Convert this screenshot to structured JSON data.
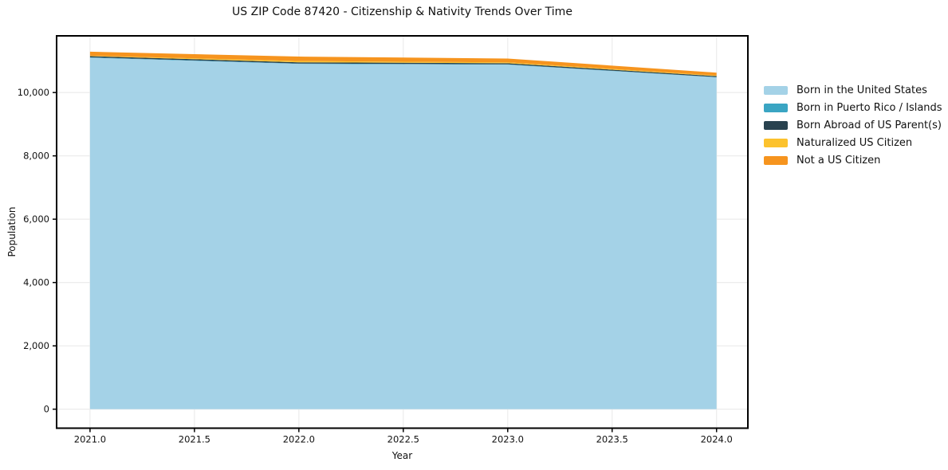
{
  "chart_data": {
    "type": "area",
    "stacked": true,
    "title": "US ZIP Code 87420 - Citizenship & Nativity Trends Over Time",
    "xlabel": "Year",
    "ylabel": "Population",
    "x": [
      2021,
      2022,
      2023,
      2024
    ],
    "series": [
      {
        "name": "Born in the United States",
        "color": "#a4d2e7",
        "values": [
          11100,
          10905,
          10880,
          10480
        ]
      },
      {
        "name": "Born in Puerto Rico / Islands",
        "color": "#3aa5c3",
        "values": [
          12,
          12,
          10,
          8
        ]
      },
      {
        "name": "Born Abroad of US Parent(s)",
        "color": "#29424f",
        "values": [
          38,
          38,
          35,
          30
        ]
      },
      {
        "name": "Naturalized US Citizen",
        "color": "#fcc22d",
        "values": [
          15,
          40,
          28,
          20
        ]
      },
      {
        "name": "Not a US Citizen",
        "color": "#f6941e",
        "values": [
          125,
          140,
          120,
          90
        ]
      }
    ],
    "totals": [
      11290,
      11135,
      11073,
      10628
    ],
    "xlim": [
      2020.84,
      2024.15
    ],
    "ylim": [
      -600,
      11790
    ],
    "xtick_values": [
      2021.0,
      2021.5,
      2022.0,
      2022.5,
      2023.0,
      2023.5,
      2024.0
    ],
    "xtick_labels": [
      "2021.0",
      "2021.5",
      "2022.0",
      "2022.5",
      "2023.0",
      "2023.5",
      "2024.0"
    ],
    "ytick_values": [
      0,
      2000,
      4000,
      6000,
      8000,
      10000
    ],
    "ytick_labels": [
      "0",
      "2,000",
      "4,000",
      "6,000",
      "8,000",
      "10,000"
    ],
    "grid": true,
    "legend_position": "right-outside",
    "colors": {
      "grid": "#ececec",
      "frame": "#000000",
      "background": "#ffffff",
      "text": "#111111"
    }
  }
}
